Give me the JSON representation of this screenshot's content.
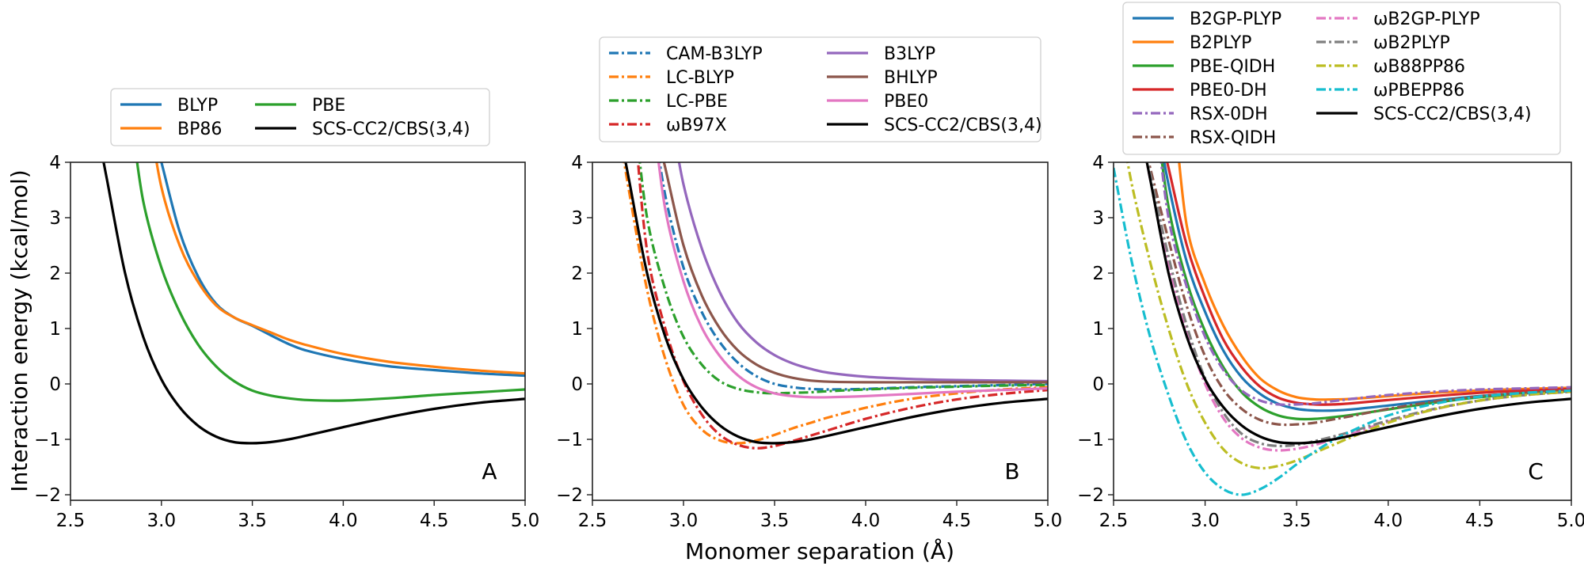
{
  "chart_data": {
    "type": "line",
    "xlabel": "Monomer separation (Å)",
    "ylabel": "Interaction energy (kcal/mol)",
    "x": [
      2.5,
      2.6,
      2.7,
      2.8,
      2.9,
      3.0,
      3.1,
      3.2,
      3.3,
      3.4,
      3.5,
      3.6,
      3.7,
      3.8,
      4.0,
      4.25,
      4.5,
      4.75,
      5.0
    ],
    "panels": [
      {
        "label": "A",
        "xlim": [
          2.5,
          5.0
        ],
        "ylim": [
          -2.1,
          4.0
        ],
        "xticks": [
          "2.5",
          "3.0",
          "3.5",
          "4.0",
          "4.5",
          "5.0"
        ],
        "yticks": [
          "−2",
          "−1",
          "0",
          "1",
          "2",
          "3",
          "4"
        ],
        "legend_columns": 2,
        "series": [
          {
            "name": "BLYP",
            "color": "#1f77b4",
            "style": "solid",
            "values": [
              null,
              null,
              null,
              null,
              null,
              4.0,
              2.75,
              1.95,
              1.45,
              1.2,
              1.05,
              0.88,
              0.72,
              0.6,
              0.45,
              0.32,
              0.25,
              0.19,
              0.15
            ]
          },
          {
            "name": "BP86",
            "color": "#ff7f0e",
            "style": "solid",
            "values": [
              null,
              null,
              null,
              null,
              null,
              3.55,
              2.5,
              1.85,
              1.42,
              1.2,
              1.06,
              0.93,
              0.8,
              0.7,
              0.54,
              0.4,
              0.31,
              0.24,
              0.19
            ]
          },
          {
            "name": "PBE",
            "color": "#2ca02c",
            "style": "solid",
            "values": [
              null,
              null,
              null,
              null,
              3.3,
              2.1,
              1.3,
              0.72,
              0.32,
              0.05,
              -0.12,
              -0.21,
              -0.26,
              -0.29,
              -0.3,
              -0.26,
              -0.2,
              -0.15,
              -0.1
            ]
          },
          {
            "name": "SCS-CC2/CBS(3,4)",
            "color": "#000000",
            "style": "solid",
            "values": [
              null,
              null,
              3.7,
              2.0,
              0.85,
              0.08,
              -0.42,
              -0.75,
              -0.95,
              -1.05,
              -1.07,
              -1.05,
              -1.0,
              -0.93,
              -0.78,
              -0.6,
              -0.45,
              -0.34,
              -0.27
            ]
          }
        ]
      },
      {
        "label": "B",
        "xlim": [
          2.5,
          5.0
        ],
        "ylim": [
          -2.1,
          4.0
        ],
        "xticks": [
          "2.5",
          "3.0",
          "3.5",
          "4.0",
          "4.5",
          "5.0"
        ],
        "yticks": [
          "−2",
          "−1",
          "0",
          "1",
          "2",
          "3",
          "4"
        ],
        "legend_columns": 2,
        "series": [
          {
            "name": "CAM-B3LYP",
            "color": "#1f77b4",
            "style": "dashdot",
            "values": [
              null,
              null,
              null,
              null,
              3.4,
              2.1,
              1.3,
              0.75,
              0.38,
              0.14,
              0.0,
              -0.06,
              -0.09,
              -0.1,
              -0.09,
              -0.06,
              -0.04,
              -0.02,
              0.0
            ]
          },
          {
            "name": "LC-BLYP",
            "color": "#ff7f0e",
            "style": "dashdot",
            "values": [
              null,
              null,
              3.5,
              1.7,
              0.45,
              -0.38,
              -0.82,
              -1.02,
              -1.07,
              -1.02,
              -0.92,
              -0.8,
              -0.7,
              -0.6,
              -0.43,
              -0.27,
              -0.17,
              -0.1,
              -0.06
            ]
          },
          {
            "name": "LC-PBE",
            "color": "#2ca02c",
            "style": "dashdot",
            "values": [
              null,
              null,
              null,
              3.0,
              1.7,
              0.85,
              0.35,
              0.05,
              -0.09,
              -0.15,
              -0.17,
              -0.16,
              -0.15,
              -0.13,
              -0.1,
              -0.07,
              -0.05,
              -0.03,
              -0.02
            ]
          },
          {
            "name": "ωB97X",
            "color": "#d62728",
            "style": "dashdot",
            "values": [
              null,
              null,
              null,
              2.4,
              1.0,
              0.05,
              -0.55,
              -0.92,
              -1.1,
              -1.16,
              -1.12,
              -1.03,
              -0.93,
              -0.83,
              -0.63,
              -0.43,
              -0.28,
              -0.18,
              -0.11
            ]
          },
          {
            "name": "B3LYP",
            "color": "#9467bd",
            "style": "solid",
            "values": [
              null,
              null,
              null,
              null,
              null,
              3.6,
              2.45,
              1.65,
              1.1,
              0.75,
              0.52,
              0.37,
              0.27,
              0.2,
              0.13,
              0.09,
              0.07,
              0.06,
              0.05
            ]
          },
          {
            "name": "BHLYP",
            "color": "#8c564b",
            "style": "solid",
            "values": [
              null,
              null,
              null,
              null,
              3.9,
              2.5,
              1.6,
              1.0,
              0.6,
              0.35,
              0.2,
              0.11,
              0.06,
              0.04,
              0.03,
              0.03,
              0.03,
              0.03,
              0.03
            ]
          },
          {
            "name": "PBE0",
            "color": "#e377c2",
            "style": "solid",
            "values": [
              null,
              null,
              null,
              null,
              3.15,
              1.85,
              1.02,
              0.5,
              0.15,
              -0.06,
              -0.17,
              -0.22,
              -0.24,
              -0.24,
              -0.22,
              -0.18,
              -0.14,
              -0.11,
              -0.08
            ]
          },
          {
            "name": "SCS-CC2/CBS(3,4)",
            "color": "#000000",
            "style": "solid",
            "values": [
              null,
              null,
              3.7,
              2.0,
              0.85,
              0.08,
              -0.42,
              -0.75,
              -0.95,
              -1.05,
              -1.07,
              -1.05,
              -1.0,
              -0.93,
              -0.78,
              -0.6,
              -0.45,
              -0.34,
              -0.27
            ]
          }
        ]
      },
      {
        "label": "C",
        "xlim": [
          2.5,
          5.0
        ],
        "ylim": [
          -2.1,
          4.0
        ],
        "xticks": [
          "2.5",
          "3.0",
          "3.5",
          "4.0",
          "4.5",
          "5.0"
        ],
        "yticks": [
          "−2",
          "−1",
          "0",
          "1",
          "2",
          "3",
          "4"
        ],
        "legend_columns": 2,
        "series": [
          {
            "name": "B2GP-PLYP",
            "color": "#1f77b4",
            "style": "solid",
            "values": [
              null,
              null,
              null,
              3.6,
              2.2,
              1.3,
              0.6,
              0.12,
              -0.18,
              -0.36,
              -0.45,
              -0.48,
              -0.48,
              -0.46,
              -0.39,
              -0.3,
              -0.22,
              -0.16,
              -0.12
            ]
          },
          {
            "name": "B2PLYP",
            "color": "#ff7f0e",
            "style": "solid",
            "values": [
              null,
              null,
              null,
              null,
              2.85,
              1.8,
              1.05,
              0.5,
              0.1,
              -0.12,
              -0.24,
              -0.28,
              -0.28,
              -0.27,
              -0.22,
              -0.16,
              -0.12,
              -0.09,
              -0.07
            ]
          },
          {
            "name": "PBE-QIDH",
            "color": "#2ca02c",
            "style": "solid",
            "values": [
              null,
              null,
              null,
              3.2,
              1.85,
              0.95,
              0.3,
              -0.15,
              -0.42,
              -0.57,
              -0.63,
              -0.63,
              -0.6,
              -0.56,
              -0.46,
              -0.34,
              -0.24,
              -0.17,
              -0.13
            ]
          },
          {
            "name": "PBE0-DH",
            "color": "#d62728",
            "style": "solid",
            "values": [
              null,
              null,
              null,
              3.9,
              2.5,
              1.55,
              0.8,
              0.3,
              -0.05,
              -0.25,
              -0.34,
              -0.37,
              -0.37,
              -0.35,
              -0.29,
              -0.22,
              -0.16,
              -0.12,
              -0.09
            ]
          },
          {
            "name": "RSX-0DH",
            "color": "#9467bd",
            "style": "dashdot",
            "values": [
              null,
              null,
              null,
              3.0,
              1.75,
              0.85,
              0.25,
              -0.12,
              -0.3,
              -0.37,
              -0.37,
              -0.35,
              -0.31,
              -0.27,
              -0.2,
              -0.14,
              -0.1,
              -0.08,
              -0.06
            ]
          },
          {
            "name": "RSX-QIDH",
            "color": "#8c564b",
            "style": "dashdot",
            "values": [
              null,
              null,
              3.9,
              2.6,
              1.4,
              0.5,
              -0.1,
              -0.45,
              -0.65,
              -0.73,
              -0.73,
              -0.7,
              -0.64,
              -0.58,
              -0.45,
              -0.32,
              -0.22,
              -0.16,
              -0.12
            ]
          },
          {
            "name": "ωB2GP-PLYP",
            "color": "#e377c2",
            "style": "dashdot",
            "values": [
              null,
              null,
              3.7,
              2.2,
              0.95,
              0.0,
              -0.62,
              -0.98,
              -1.15,
              -1.2,
              -1.17,
              -1.1,
              -1.0,
              -0.9,
              -0.68,
              -0.46,
              -0.3,
              -0.2,
              -0.14
            ]
          },
          {
            "name": "ωB2PLYP",
            "color": "#7f7f7f",
            "style": "dashdot",
            "values": [
              null,
              null,
              3.8,
              2.3,
              1.05,
              0.1,
              -0.52,
              -0.9,
              -1.07,
              -1.12,
              -1.1,
              -1.03,
              -0.95,
              -0.86,
              -0.66,
              -0.45,
              -0.3,
              -0.2,
              -0.14
            ]
          },
          {
            "name": "ωB88PP86",
            "color": "#bcbd22",
            "style": "dashdot",
            "values": [
              null,
              3.6,
              2.2,
              1.0,
              0.0,
              -0.7,
              -1.18,
              -1.43,
              -1.52,
              -1.48,
              -1.38,
              -1.24,
              -1.1,
              -0.96,
              -0.7,
              -0.46,
              -0.3,
              -0.2,
              -0.14
            ]
          },
          {
            "name": "ωPBEPP86",
            "color": "#17becf",
            "style": "dashdot",
            "values": [
              3.9,
              2.2,
              0.85,
              -0.2,
              -1.05,
              -1.6,
              -1.9,
              -2.0,
              -1.9,
              -1.7,
              -1.45,
              -1.22,
              -1.02,
              -0.85,
              -0.57,
              -0.36,
              -0.23,
              -0.16,
              -0.12
            ]
          },
          {
            "name": "SCS-CC2/CBS(3,4)",
            "color": "#000000",
            "style": "solid",
            "values": [
              null,
              null,
              3.7,
              2.0,
              0.85,
              0.08,
              -0.42,
              -0.75,
              -0.95,
              -1.05,
              -1.07,
              -1.05,
              -1.0,
              -0.93,
              -0.78,
              -0.6,
              -0.45,
              -0.34,
              -0.27
            ]
          }
        ]
      }
    ]
  }
}
